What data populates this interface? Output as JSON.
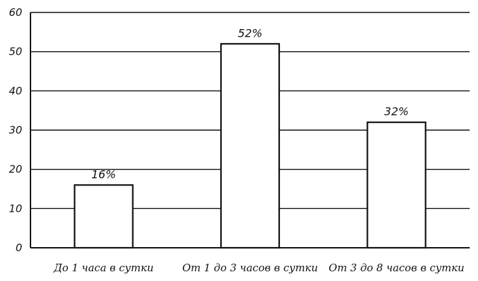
{
  "chart_data": {
    "type": "bar",
    "categories": [
      "До 1 часа в сутки",
      "От 1 до 3 часов в сутки",
      "От 3 до 8 часов в сутки"
    ],
    "values": [
      16,
      52,
      32
    ],
    "data_labels": [
      "16%",
      "52%",
      "32%"
    ],
    "ylim": [
      0,
      60
    ],
    "yticks": [
      0,
      10,
      20,
      30,
      40,
      50,
      60
    ],
    "grid": true,
    "colors": {
      "bar_fill": "#ffffff",
      "bar_stroke": "#111111",
      "grid": "#111111",
      "axis": "#111111"
    }
  }
}
